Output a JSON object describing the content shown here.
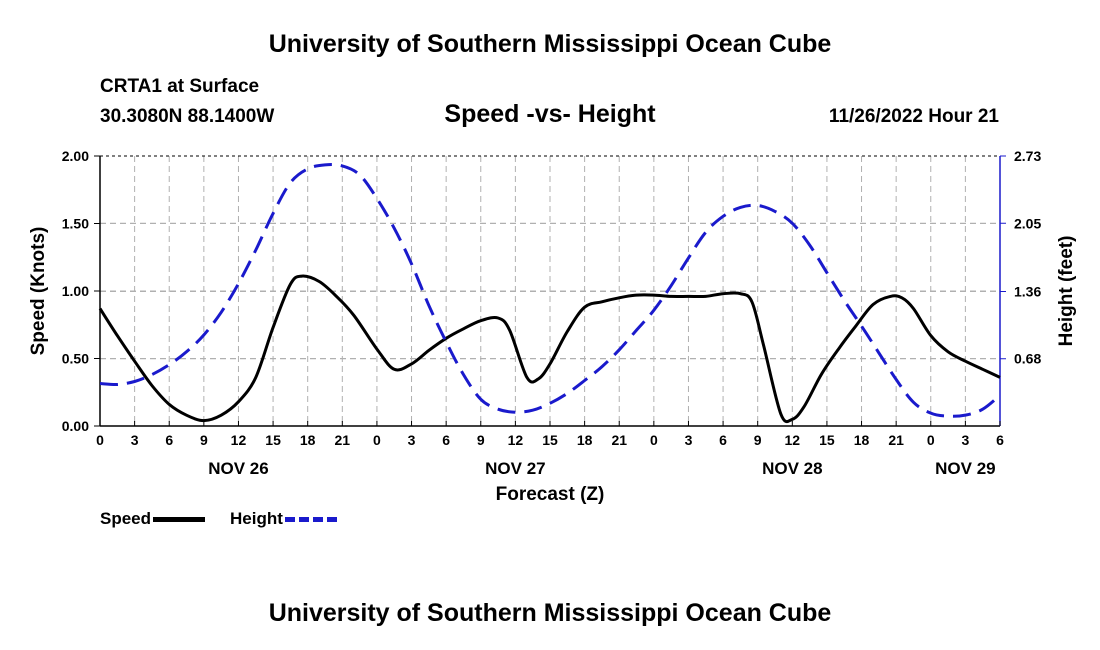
{
  "header": {
    "title": "University of Southern Mississippi Ocean Cube",
    "station": "CRTA1 at Surface",
    "location": "30.3080N  88.1400W",
    "datetime": "11/26/2022 Hour 21"
  },
  "footer": {
    "title": "University of Southern Mississippi Ocean Cube"
  },
  "chart_data": {
    "type": "line",
    "title": "Speed -vs- Height",
    "xlabel": "Forecast (Z)",
    "ylabel": "Speed (Knots)",
    "y2label": "Height (feet)",
    "xlim": [
      0,
      78
    ],
    "ylim": [
      0,
      2.0
    ],
    "y2lim": [
      0,
      2.73
    ],
    "grid": true,
    "x_ticks": [
      0,
      3,
      6,
      9,
      12,
      15,
      18,
      21,
      24,
      27,
      30,
      33,
      36,
      39,
      42,
      45,
      48,
      51,
      54,
      57,
      60,
      63,
      66,
      69,
      72,
      75,
      78
    ],
    "x_tick_labels": [
      "0",
      "3",
      "6",
      "9",
      "12",
      "15",
      "18",
      "21",
      "0",
      "3",
      "6",
      "9",
      "12",
      "15",
      "18",
      "21",
      "0",
      "3",
      "6",
      "9",
      "12",
      "15",
      "18",
      "21",
      "0",
      "3",
      "6"
    ],
    "date_labels": [
      {
        "x": 12,
        "label": "NOV 26"
      },
      {
        "x": 36,
        "label": "NOV 27"
      },
      {
        "x": 60,
        "label": "NOV 28"
      },
      {
        "x": 75,
        "label": "NOV 29"
      }
    ],
    "y_ticks": [
      "0.00",
      "0.50",
      "1.00",
      "1.50",
      "2.00"
    ],
    "y_tick_values": [
      0,
      0.5,
      1.0,
      1.5,
      2.0
    ],
    "y2_ticks": [
      "0.68",
      "1.36",
      "2.05",
      "2.73"
    ],
    "y2_tick_values": [
      0.68,
      1.36,
      2.05,
      2.73
    ],
    "series": [
      {
        "name": "Speed",
        "axis": "left",
        "color": "#000000",
        "style": "solid",
        "x": [
          0,
          1.5,
          3,
          4.5,
          6,
          7.5,
          9,
          10.5,
          12,
          13.5,
          15,
          16.5,
          17.5,
          19,
          20.5,
          22,
          24,
          25.5,
          27,
          28.5,
          30,
          31.5,
          33,
          34.5,
          35.5,
          37,
          38,
          39,
          40.5,
          42,
          43.5,
          45,
          46.5,
          48,
          49.5,
          51,
          52.5,
          54,
          55.5,
          56.5,
          57.5,
          59,
          60,
          61,
          62.5,
          64,
          65.5,
          67,
          68.5,
          69.5,
          70.5,
          72,
          73.5,
          75,
          76.5,
          78
        ],
        "y": [
          0.87,
          0.67,
          0.48,
          0.3,
          0.16,
          0.08,
          0.04,
          0.08,
          0.18,
          0.36,
          0.73,
          1.05,
          1.11,
          1.07,
          0.96,
          0.82,
          0.57,
          0.42,
          0.46,
          0.56,
          0.65,
          0.72,
          0.78,
          0.8,
          0.71,
          0.36,
          0.35,
          0.46,
          0.7,
          0.88,
          0.92,
          0.95,
          0.97,
          0.97,
          0.96,
          0.96,
          0.96,
          0.98,
          0.98,
          0.92,
          0.6,
          0.09,
          0.05,
          0.14,
          0.38,
          0.57,
          0.74,
          0.9,
          0.96,
          0.95,
          0.87,
          0.67,
          0.55,
          0.48,
          0.42,
          0.36
        ]
      },
      {
        "name": "Height",
        "axis": "right",
        "color": "#1a1acc",
        "style": "dashed",
        "x": [
          0,
          1.5,
          3,
          4.5,
          6,
          7.5,
          9,
          10.5,
          12,
          13.5,
          15,
          16.5,
          18,
          19.5,
          21,
          22.5,
          24,
          25.5,
          27,
          28.5,
          30,
          31.5,
          33,
          34.5,
          36,
          37.5,
          39,
          40.5,
          42,
          43.5,
          45,
          46.5,
          48,
          49.5,
          51,
          52.5,
          54,
          55.5,
          57,
          58.5,
          60,
          61.5,
          63,
          64.5,
          66,
          67.5,
          69,
          70.5,
          72,
          73.5,
          75,
          76.5,
          78
        ],
        "y": [
          0.43,
          0.42,
          0.45,
          0.52,
          0.62,
          0.75,
          0.92,
          1.15,
          1.44,
          1.78,
          2.15,
          2.46,
          2.6,
          2.64,
          2.63,
          2.54,
          2.3,
          2.0,
          1.64,
          1.22,
          0.85,
          0.52,
          0.27,
          0.17,
          0.14,
          0.16,
          0.23,
          0.33,
          0.46,
          0.6,
          0.77,
          0.97,
          1.17,
          1.42,
          1.7,
          1.96,
          2.12,
          2.21,
          2.23,
          2.17,
          2.05,
          1.83,
          1.55,
          1.27,
          1.01,
          0.74,
          0.47,
          0.24,
          0.13,
          0.1,
          0.11,
          0.17,
          0.31
        ]
      }
    ]
  }
}
